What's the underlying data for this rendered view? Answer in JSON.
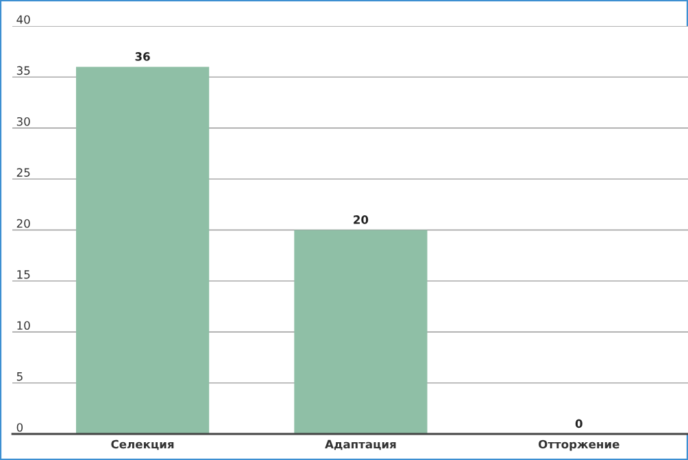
{
  "chart_data": {
    "type": "bar",
    "categories": [
      "Селекция",
      "Адаптация",
      "Отторжение"
    ],
    "values": [
      36,
      20,
      0
    ],
    "color": "#8fbfa6",
    "ylim": [
      0,
      40
    ],
    "yticks": [
      0,
      5,
      10,
      15,
      20,
      25,
      30,
      35,
      40
    ],
    "grid": "y",
    "data_labels": true
  }
}
